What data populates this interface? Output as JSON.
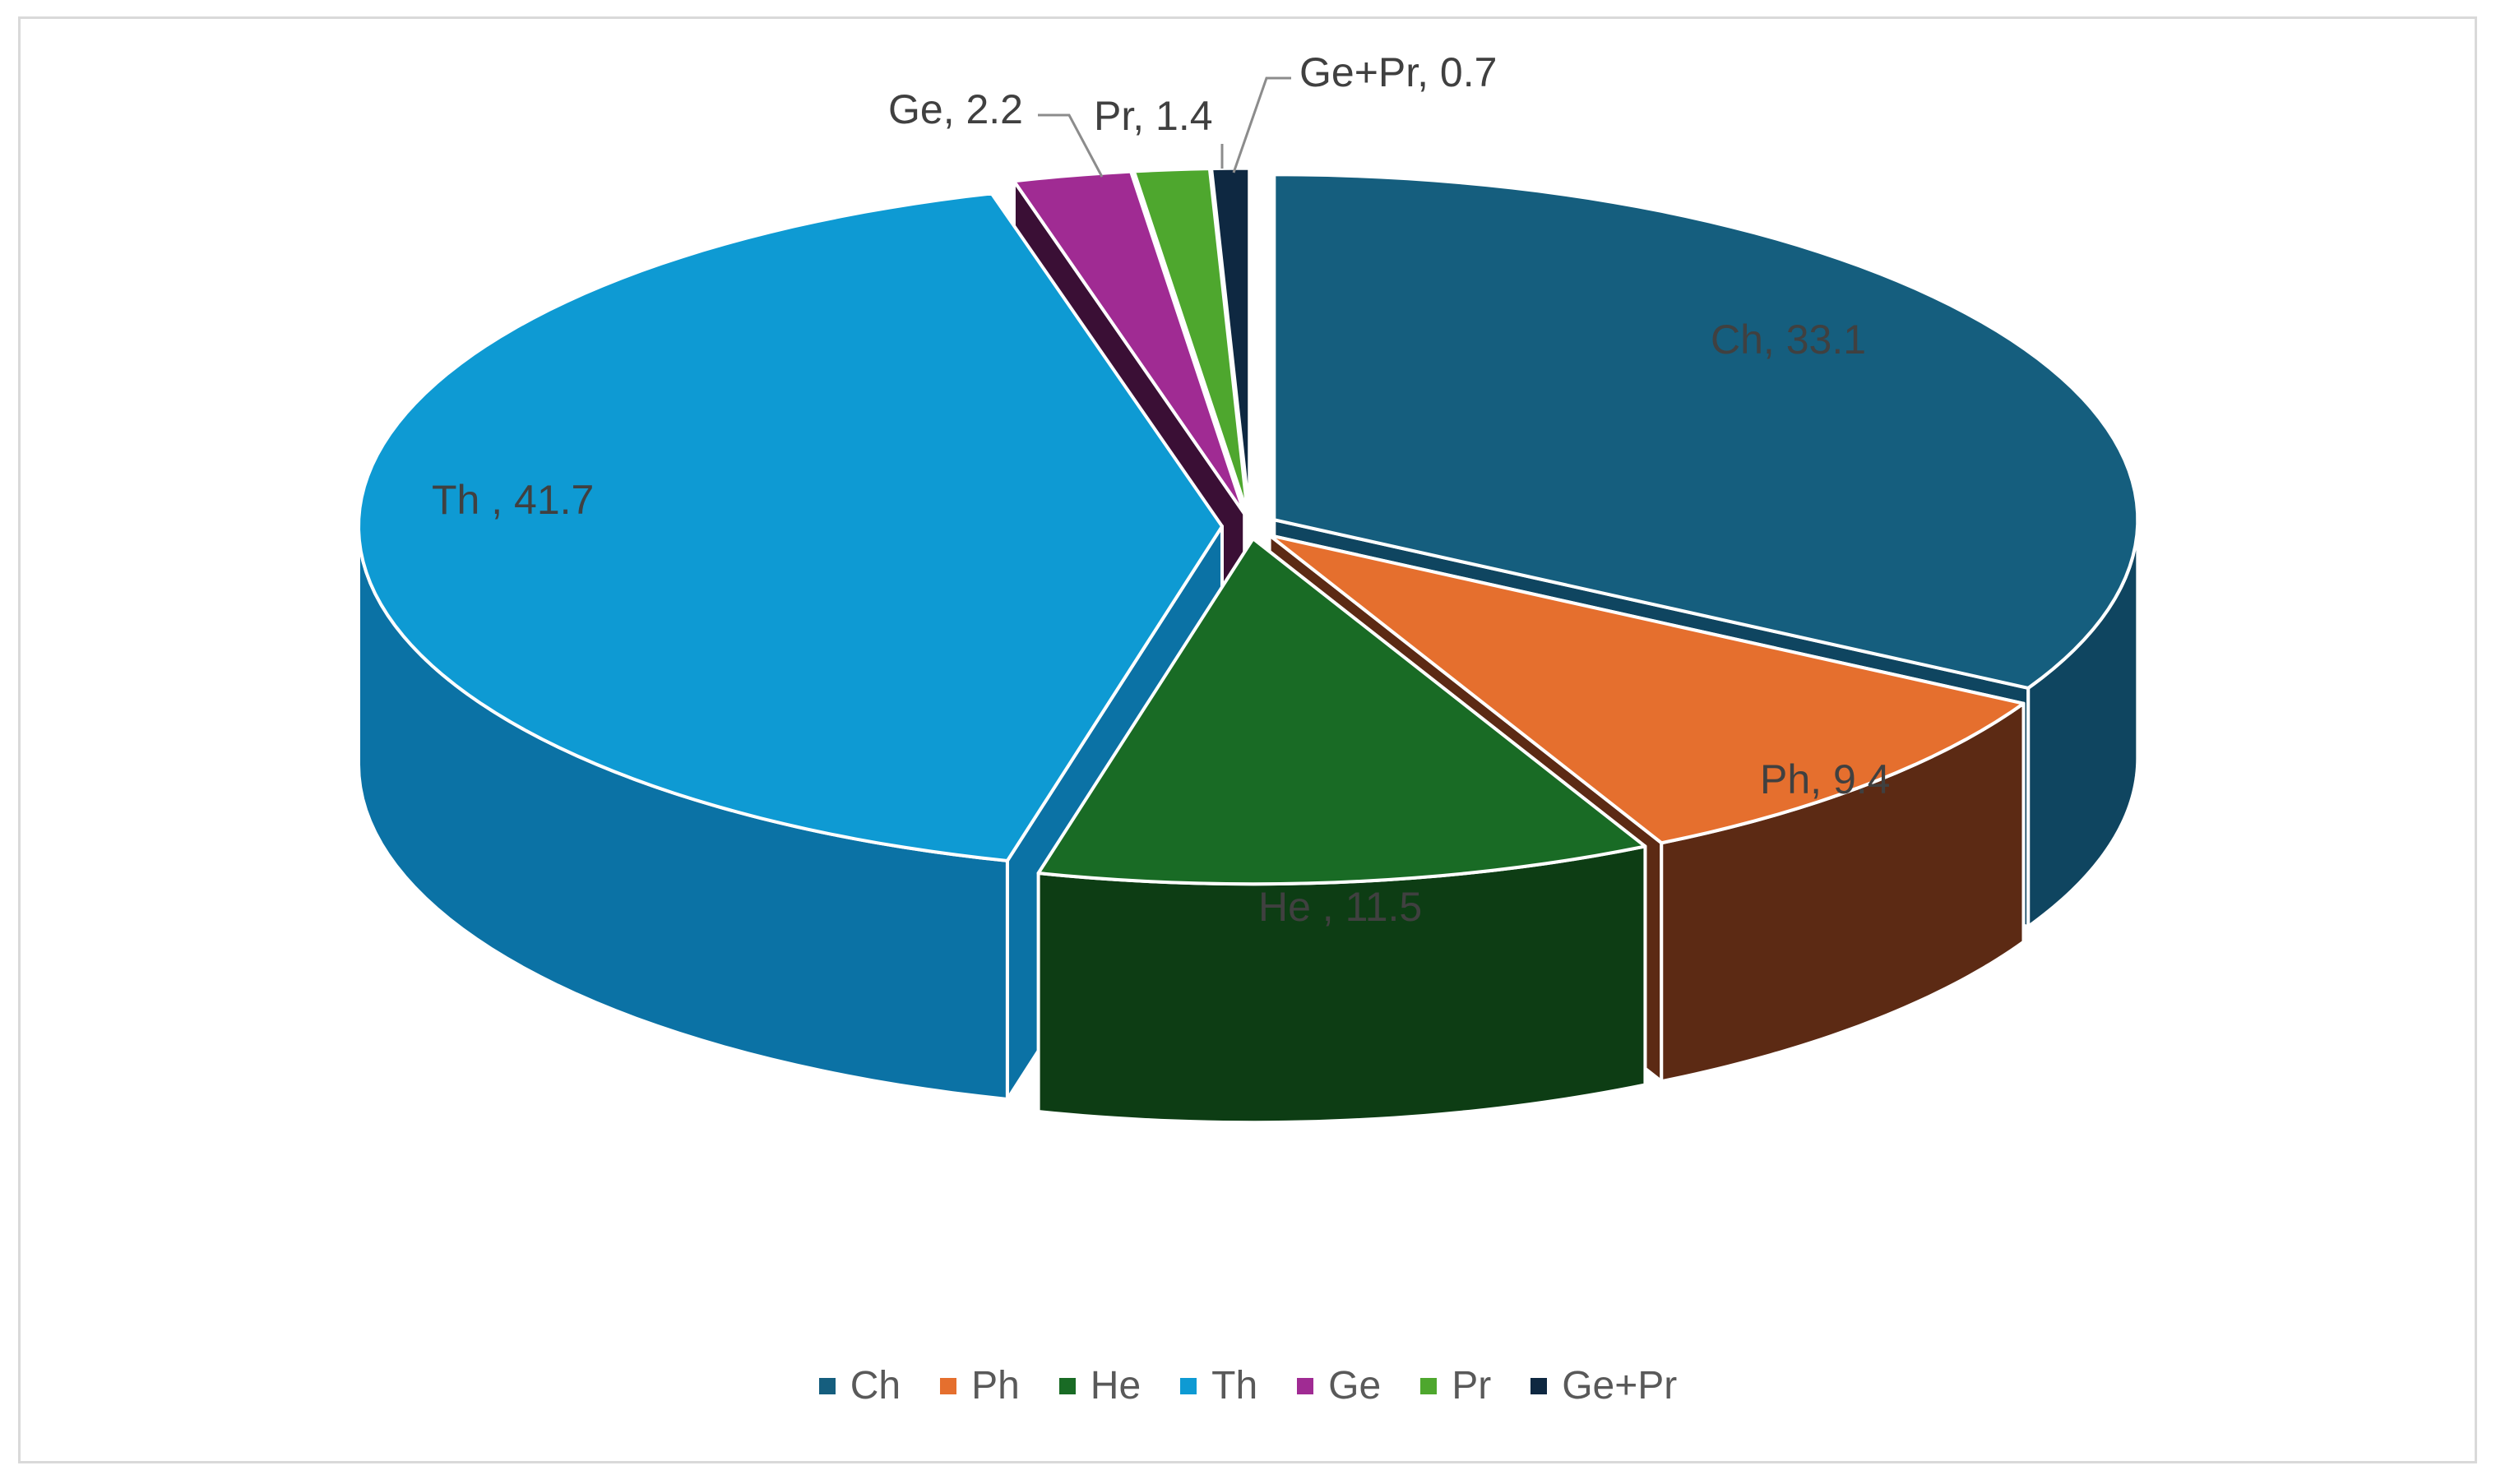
{
  "chart_data": {
    "type": "pie",
    "variant": "3d-exploded",
    "title": "",
    "unit": "",
    "slices": [
      {
        "label": "Ch",
        "value": 33.1,
        "data_label": "Ch, 33.1",
        "color": "#155e7e",
        "side_color": "#0f4560"
      },
      {
        "label": "Ph",
        "value": 9.4,
        "data_label": "Ph, 9.4",
        "color": "#e56f2e",
        "side_color": "#5c2a14"
      },
      {
        "label": "He",
        "value": 11.5,
        "data_label": "He , 11.5",
        "color": "#196b25",
        "side_color": "#0d3d14"
      },
      {
        "label": "Th",
        "value": 41.7,
        "data_label": "Th , 41.7",
        "color": "#0e9ad3",
        "side_color": "#0b72a5"
      },
      {
        "label": "Ge",
        "value": 2.2,
        "data_label": "Ge, 2.2",
        "color": "#a02b93",
        "side_color": "#3a0f35"
      },
      {
        "label": "Pr",
        "value": 1.4,
        "data_label": "Pr, 1.4",
        "color": "#4ea72e",
        "side_color": "#2c6418"
      },
      {
        "label": "Ge+Pr",
        "value": 0.7,
        "data_label": "Ge+Pr, 0.7",
        "color": "#0e2841",
        "side_color": "#071522"
      }
    ],
    "legend_position": "bottom"
  }
}
